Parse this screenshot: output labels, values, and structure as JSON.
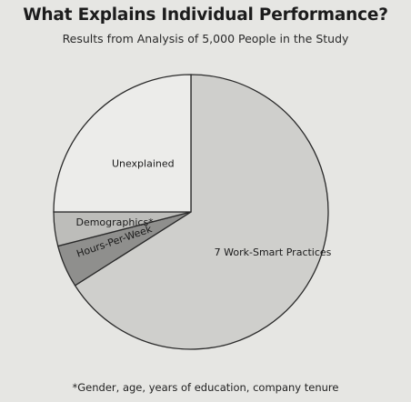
{
  "chart_data": {
    "type": "pie",
    "title": "What Explains Individual Performance?",
    "subtitle": "Results from Analysis of 5,000 People in the Study",
    "slices": [
      {
        "label": "7 Work-Smart Practices",
        "value": 66,
        "color": "#cfcfcc"
      },
      {
        "label": "Hours-Per-Week",
        "value": 5,
        "color": "#8f8f8d"
      },
      {
        "label": "Demographics*",
        "value": 4,
        "color": "#bdbdba"
      },
      {
        "label": "Unexplained",
        "value": 25,
        "color": "#ececea"
      }
    ],
    "footnote": "*Gender, age, years of education, company tenure"
  }
}
